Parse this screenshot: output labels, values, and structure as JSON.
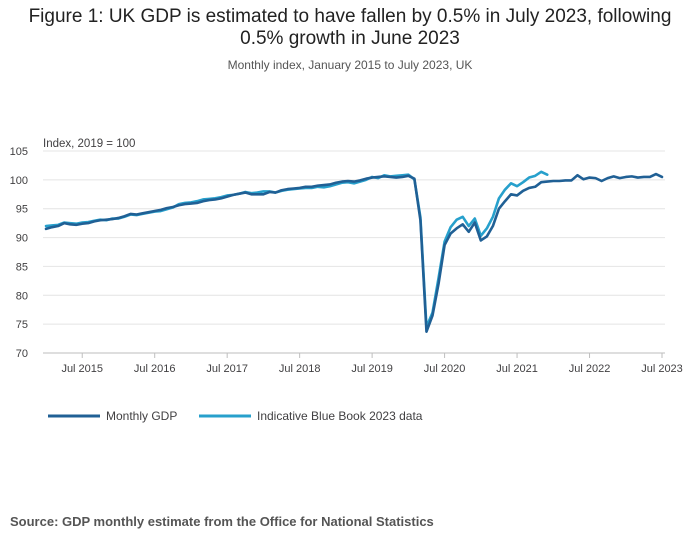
{
  "title": "Figure 1: UK GDP is estimated to have fallen by 0.5% in July 2023, following 0.5% growth in June 2023",
  "title_lines": [
    "Figure 1: UK GDP is estimated to have fallen by 0.5% in July 2023, following",
    "0.5% growth in June 2023"
  ],
  "subtitle": "Monthly index, January 2015 to July 2023, UK",
  "source": "Source: GDP monthly estimate from the Office for National Statistics",
  "chart_data": {
    "type": "line",
    "title": "Figure 1: UK GDP is estimated to have fallen by 0.5% in July 2023, following 0.5% growth in June 2023",
    "ylabel": "Index, 2019 = 100",
    "xlabel": "",
    "ylim": [
      70,
      105
    ],
    "yticks": [
      70,
      75,
      80,
      85,
      90,
      95,
      100,
      105
    ],
    "xticks": [
      {
        "label": "Jul 2015",
        "index": 6
      },
      {
        "label": "Jul 2016",
        "index": 18
      },
      {
        "label": "Jul 2017",
        "index": 30
      },
      {
        "label": "Jul 2018",
        "index": 42
      },
      {
        "label": "Jul 2019",
        "index": 54
      },
      {
        "label": "Jul 2020",
        "index": 66
      },
      {
        "label": "Jul 2021",
        "index": 78
      },
      {
        "label": "Jul 2022",
        "index": 90
      },
      {
        "label": "Jul 2023",
        "index": 102
      }
    ],
    "x_start": "Jan 2015",
    "grid": true,
    "legend_position": "bottom-left",
    "series": [
      {
        "name": "Monthly GDP",
        "color": "#206095",
        "values": [
          91.5,
          91.8,
          92.0,
          92.5,
          92.3,
          92.2,
          92.4,
          92.5,
          92.8,
          93.0,
          93.1,
          93.2,
          93.4,
          93.7,
          94.1,
          94.0,
          94.2,
          94.4,
          94.6,
          94.8,
          95.1,
          95.3,
          95.6,
          95.8,
          95.9,
          96.0,
          96.3,
          96.5,
          96.6,
          96.8,
          97.1,
          97.4,
          97.6,
          97.8,
          97.5,
          97.5,
          97.5,
          97.9,
          97.8,
          98.2,
          98.4,
          98.5,
          98.6,
          98.8,
          98.8,
          99.0,
          99.1,
          99.2,
          99.5,
          99.7,
          99.8,
          99.7,
          99.9,
          100.2,
          100.4,
          100.5,
          100.6,
          100.5,
          100.4,
          100.5,
          100.7,
          100.2,
          93.0,
          73.7,
          76.5,
          82.0,
          88.7,
          90.7,
          91.6,
          92.3,
          91.0,
          92.6,
          89.5,
          90.2,
          92.0,
          95.0,
          96.3,
          97.5,
          97.3,
          98.1,
          98.6,
          98.8,
          99.6,
          99.7,
          99.8,
          99.8,
          99.9,
          99.9,
          100.8,
          100.1,
          100.4,
          100.3,
          99.8,
          100.3,
          100.6,
          100.3,
          100.5,
          100.6,
          100.4,
          100.5,
          100.5,
          101.0,
          100.5
        ]
      },
      {
        "name": "Indicative Blue Book 2023 data",
        "color": "#27a0cc",
        "values": [
          92.0,
          92.1,
          92.2,
          92.6,
          92.5,
          92.4,
          92.6,
          92.7,
          92.9,
          93.1,
          93.0,
          93.3,
          93.3,
          93.6,
          94.0,
          93.9,
          94.1,
          94.3,
          94.5,
          94.6,
          94.9,
          95.2,
          95.8,
          96.0,
          96.1,
          96.3,
          96.6,
          96.7,
          96.8,
          97.0,
          97.3,
          97.4,
          97.6,
          97.9,
          97.7,
          97.8,
          98.0,
          98.0,
          97.8,
          98.1,
          98.3,
          98.4,
          98.5,
          98.6,
          98.6,
          98.8,
          98.7,
          98.9,
          99.2,
          99.5,
          99.6,
          99.4,
          99.7,
          100.0,
          100.5,
          100.3,
          100.8,
          100.6,
          100.7,
          100.8,
          100.9,
          100.1,
          93.5,
          74.5,
          77.0,
          83.0,
          89.3,
          91.8,
          93.1,
          93.6,
          92.0,
          93.3,
          90.3,
          91.6,
          93.6,
          96.8,
          98.3,
          99.4,
          98.9,
          99.6,
          100.4,
          100.7,
          101.4,
          100.9
        ]
      }
    ]
  }
}
